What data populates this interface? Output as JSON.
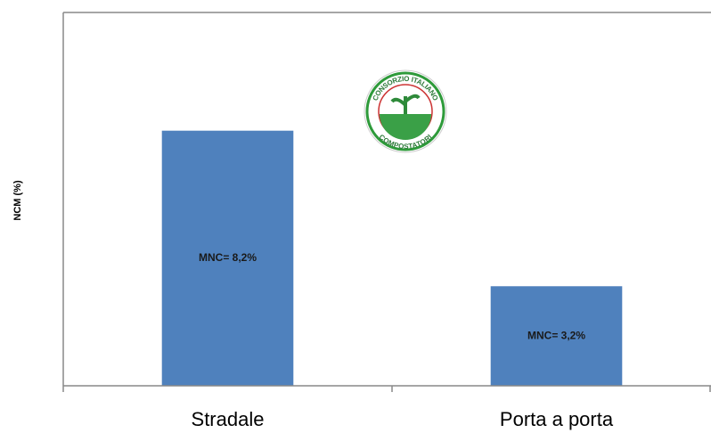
{
  "chart_data": {
    "type": "bar",
    "y_label": "NCM (%)",
    "categories": [
      "Stradale",
      "Porta a porta"
    ],
    "values": [
      8.2,
      3.2
    ],
    "value_labels": [
      "MNC= 8,2%",
      "MNC= 3,2%"
    ],
    "color": "#4f81bd",
    "ylim": [
      0,
      12
    ],
    "logo_text": [
      "CONSORZIO ITALIANO",
      "COMPOSTATORI"
    ]
  }
}
